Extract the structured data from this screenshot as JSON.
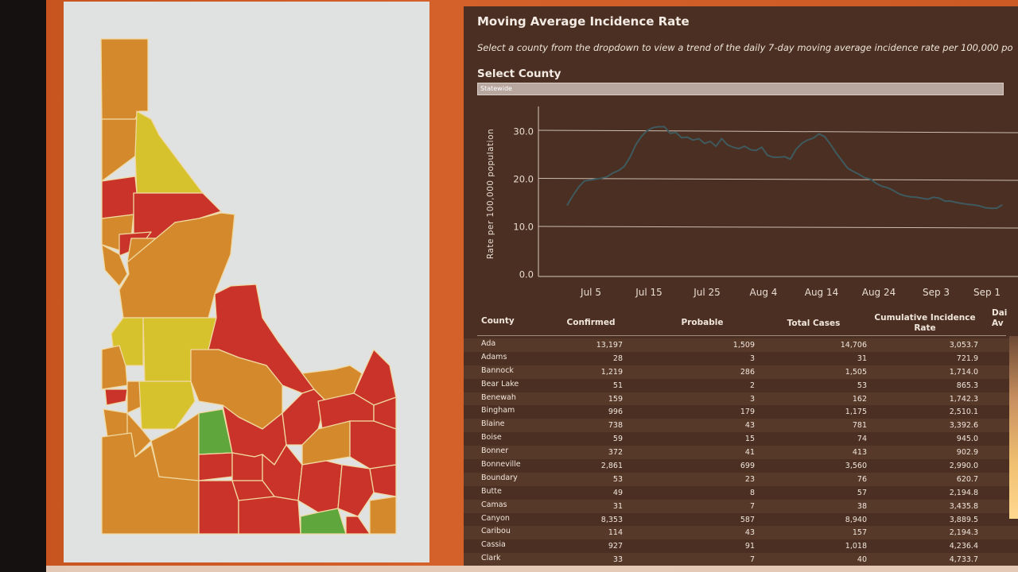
{
  "dashboard": {
    "title": "Moving Average Incidence Rate",
    "subtitle": "Select a county from the dropdown to view a trend of the daily 7-day moving average incidence rate per 100,000 po",
    "select_label": "Select County",
    "select_value": "Statewide"
  },
  "chart_data": {
    "type": "line",
    "ylabel": "Rate per 100,000 population",
    "y_ticks": [
      "0.0",
      "10.0",
      "20.0",
      "30.0"
    ],
    "x_ticks": [
      "Jul 5",
      "Jul 15",
      "Jul 25",
      "Aug 4",
      "Aug 14",
      "Aug 24",
      "Sep 3",
      "Sep 1"
    ],
    "ylim": [
      0,
      33
    ],
    "grid": true,
    "x": [
      "Jun 28",
      "Jun 29",
      "Jun 30",
      "Jul 1",
      "Jul 2",
      "Jul 3",
      "Jul 4",
      "Jul 5",
      "Jul 6",
      "Jul 7",
      "Jul 8",
      "Jul 9",
      "Jul 10",
      "Jul 11",
      "Jul 12",
      "Jul 13",
      "Jul 14",
      "Jul 15",
      "Jul 16",
      "Jul 17",
      "Jul 18",
      "Jul 19",
      "Jul 20",
      "Jul 21",
      "Jul 22",
      "Jul 23",
      "Jul 24",
      "Jul 25",
      "Jul 26",
      "Jul 27",
      "Jul 28",
      "Jul 29",
      "Jul 30",
      "Jul 31",
      "Aug 1",
      "Aug 2",
      "Aug 3",
      "Aug 4",
      "Aug 5",
      "Aug 6",
      "Aug 7",
      "Aug 8",
      "Aug 9",
      "Aug 10",
      "Aug 11",
      "Aug 12",
      "Aug 13",
      "Aug 14",
      "Aug 15",
      "Aug 16",
      "Aug 17",
      "Aug 18",
      "Aug 19",
      "Aug 20",
      "Aug 21",
      "Aug 22",
      "Aug 23",
      "Aug 24",
      "Aug 25",
      "Aug 26",
      "Aug 27",
      "Aug 28",
      "Aug 29",
      "Aug 30",
      "Aug 31",
      "Sep 1",
      "Sep 2",
      "Sep 3",
      "Sep 4",
      "Sep 5",
      "Sep 6",
      "Sep 7",
      "Sep 8",
      "Sep 9",
      "Sep 10",
      "Sep 11",
      "Sep 12"
    ],
    "values": [
      14.5,
      16.5,
      18.3,
      19.6,
      19.8,
      20.0,
      20.2,
      20.5,
      21.3,
      21.8,
      22.7,
      24.6,
      27.2,
      29.0,
      30.2,
      30.8,
      31.0,
      31.0,
      29.6,
      29.8,
      28.7,
      28.8,
      28.2,
      28.5,
      27.5,
      27.9,
      26.9,
      28.5,
      27.2,
      26.7,
      26.4,
      26.9,
      26.2,
      26.0,
      26.7,
      25.0,
      24.6,
      24.6,
      24.7,
      24.2,
      26.3,
      27.5,
      28.2,
      28.6,
      29.5,
      28.9,
      27.3,
      25.5,
      23.9,
      22.3,
      21.6,
      21.0,
      20.3,
      20.0,
      19.1,
      18.5,
      18.2,
      17.6,
      16.9,
      16.5,
      16.3,
      16.2,
      16.0,
      15.8,
      16.2,
      16.0,
      15.4,
      15.4,
      15.1,
      14.9,
      14.7,
      14.6,
      14.4,
      14.0,
      13.9,
      13.9,
      14.6
    ]
  },
  "table": {
    "headers": {
      "county": "County",
      "confirmed": "Confirmed",
      "probable": "Probable",
      "total": "Total Cases",
      "cumulative_1": "Cumulative Incidence",
      "cumulative_2": "Rate",
      "daily_1": "Dai",
      "daily_2": "Av"
    },
    "rows": [
      {
        "county": "Ada",
        "confirmed": "13,197",
        "probable": "1,509",
        "total": "14,706",
        "rate": "3,053.7"
      },
      {
        "county": "Adams",
        "confirmed": "28",
        "probable": "3",
        "total": "31",
        "rate": "721.9"
      },
      {
        "county": "Bannock",
        "confirmed": "1,219",
        "probable": "286",
        "total": "1,505",
        "rate": "1,714.0"
      },
      {
        "county": "Bear Lake",
        "confirmed": "51",
        "probable": "2",
        "total": "53",
        "rate": "865.3"
      },
      {
        "county": "Benewah",
        "confirmed": "159",
        "probable": "3",
        "total": "162",
        "rate": "1,742.3"
      },
      {
        "county": "Bingham",
        "confirmed": "996",
        "probable": "179",
        "total": "1,175",
        "rate": "2,510.1"
      },
      {
        "county": "Blaine",
        "confirmed": "738",
        "probable": "43",
        "total": "781",
        "rate": "3,392.6"
      },
      {
        "county": "Boise",
        "confirmed": "59",
        "probable": "15",
        "total": "74",
        "rate": "945.0"
      },
      {
        "county": "Bonner",
        "confirmed": "372",
        "probable": "41",
        "total": "413",
        "rate": "902.9"
      },
      {
        "county": "Bonneville",
        "confirmed": "2,861",
        "probable": "699",
        "total": "3,560",
        "rate": "2,990.0"
      },
      {
        "county": "Boundary",
        "confirmed": "53",
        "probable": "23",
        "total": "76",
        "rate": "620.7"
      },
      {
        "county": "Butte",
        "confirmed": "49",
        "probable": "8",
        "total": "57",
        "rate": "2,194.8"
      },
      {
        "county": "Camas",
        "confirmed": "31",
        "probable": "7",
        "total": "38",
        "rate": "3,435.8"
      },
      {
        "county": "Canyon",
        "confirmed": "8,353",
        "probable": "587",
        "total": "8,940",
        "rate": "3,889.5"
      },
      {
        "county": "Caribou",
        "confirmed": "114",
        "probable": "43",
        "total": "157",
        "rate": "2,194.3"
      },
      {
        "county": "Cassia",
        "confirmed": "927",
        "probable": "91",
        "total": "1,018",
        "rate": "4,236.4"
      },
      {
        "county": "Clark",
        "confirmed": "33",
        "probable": "7",
        "total": "40",
        "rate": "4,733.7"
      }
    ]
  },
  "map": {
    "colors": {
      "orange": "#d48a2c",
      "red": "#c9332a",
      "yellow": "#d6c22c",
      "green": "#5fa73d",
      "border": "#f0d8a0"
    }
  }
}
